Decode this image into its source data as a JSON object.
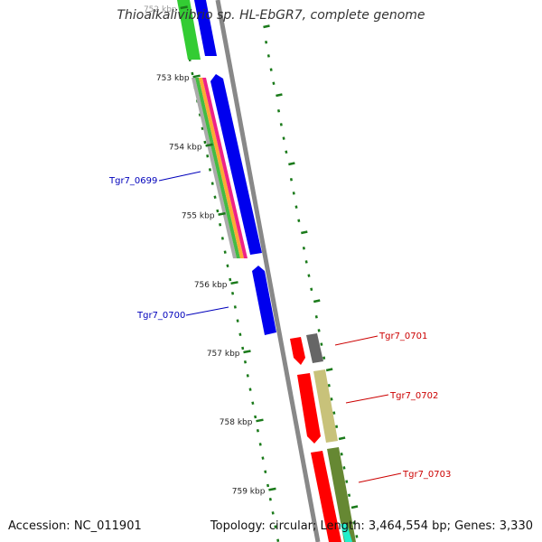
{
  "title": "Thioalkalivibrio sp. HL-EbGR7, complete genome",
  "accession": "Accession: NC_011901",
  "topology": "Topology: circular; Length: 3,464,554 bp; Genes: 3,330",
  "scale_labels": [
    "752 kbp",
    "753 kbp",
    "754 kbp",
    "755 kbp",
    "756 kbp",
    "757 kbp",
    "758 kbp",
    "759 kbp"
  ],
  "gene_labels": [
    {
      "name": "Tgr7_0699",
      "color": "#0000bb"
    },
    {
      "name": "Tgr7_0700",
      "color": "#0000bb"
    },
    {
      "name": "Tgr7_0701",
      "color": "#cc0000"
    },
    {
      "name": "Tgr7_0702",
      "color": "#cc0000"
    },
    {
      "name": "Tgr7_0703",
      "color": "#cc0000"
    }
  ],
  "colors": {
    "backbone": "#888888",
    "scale_ticks": "#1a7a1a",
    "forward_gene": "#0000ee",
    "reverse_gene": "#ff0000"
  }
}
